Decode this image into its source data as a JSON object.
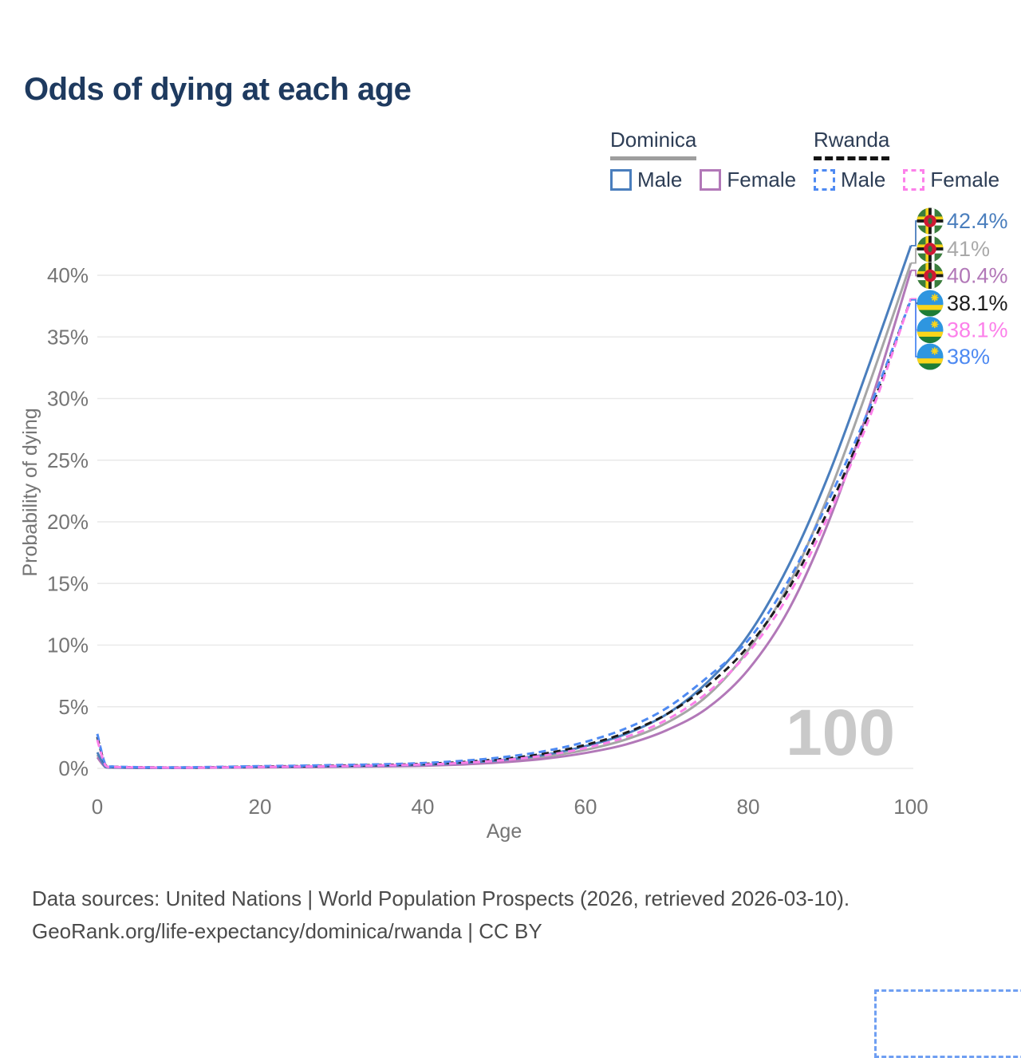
{
  "title": "Odds of dying at each age",
  "legend": {
    "groups": [
      {
        "name": "Dominica",
        "line_style": "solid",
        "underline_color": "#9e9e9e",
        "items": [
          {
            "label": "Male",
            "color": "#4a7ebd"
          },
          {
            "label": "Female",
            "color": "#b278b8"
          }
        ]
      },
      {
        "name": "Rwanda",
        "line_style": "dashed",
        "underline_color": "#141414",
        "items": [
          {
            "label": "Male",
            "color": "#4e8af2"
          },
          {
            "label": "Female",
            "color": "#fc80ea"
          }
        ]
      }
    ]
  },
  "watermark": "100",
  "footer": {
    "line1": "Data sources: United Nations | World Population Prospects (2026, retrieved 2026-03-10).",
    "line2": "GeoRank.org/life-expectancy/dominica/rwanda | CC BY"
  },
  "chart_data": {
    "type": "line",
    "title": "Odds of dying at each age",
    "xlabel": "Age",
    "ylabel": "Probability of dying",
    "xlim": [
      0,
      100
    ],
    "ylim": [
      0,
      40
    ],
    "x_ticks": [
      0,
      20,
      40,
      60,
      80,
      100
    ],
    "y_ticks": [
      0,
      5,
      10,
      15,
      20,
      25,
      30,
      35,
      40
    ],
    "y_tick_suffix": "%",
    "grid": true,
    "legend_position": "top-right",
    "x": [
      0,
      1,
      2,
      5,
      10,
      15,
      20,
      25,
      30,
      35,
      40,
      45,
      50,
      55,
      60,
      65,
      70,
      75,
      80,
      85,
      90,
      95,
      100
    ],
    "series": [
      {
        "name": "Dominica Male",
        "country": "Dominica",
        "sex": "Male",
        "color": "#4a7ebd",
        "dash": "solid",
        "flag": "dominica",
        "end_label": "42.4%",
        "label_color": "#4a7ebd",
        "values": [
          1.3,
          0.12,
          0.08,
          0.05,
          0.05,
          0.08,
          0.12,
          0.15,
          0.18,
          0.22,
          0.3,
          0.45,
          0.7,
          1.1,
          1.8,
          2.8,
          4.4,
          7.0,
          10.8,
          16.5,
          24.0,
          33.0,
          42.4
        ]
      },
      {
        "name": "Dominica",
        "country": "Dominica",
        "sex": "Both",
        "color": "#a6a6a6",
        "dash": "solid",
        "flag": "dominica",
        "end_label": "41%",
        "label_color": "#a9a9a9",
        "values": [
          1.1,
          0.1,
          0.07,
          0.05,
          0.04,
          0.07,
          0.1,
          0.13,
          0.16,
          0.19,
          0.26,
          0.39,
          0.6,
          0.95,
          1.5,
          2.35,
          3.7,
          5.9,
          9.6,
          14.9,
          22.4,
          31.4,
          41.0
        ]
      },
      {
        "name": "Dominica Female",
        "country": "Dominica",
        "sex": "Female",
        "color": "#b278b8",
        "dash": "solid",
        "flag": "dominica",
        "end_label": "40.4%",
        "label_color": "#b278b8",
        "values": [
          0.9,
          0.09,
          0.06,
          0.04,
          0.04,
          0.06,
          0.08,
          0.1,
          0.13,
          0.16,
          0.21,
          0.32,
          0.5,
          0.78,
          1.25,
          1.95,
          3.1,
          4.9,
          8.0,
          12.9,
          20.2,
          29.6,
          40.4
        ]
      },
      {
        "name": "Rwanda",
        "country": "Rwanda",
        "sex": "Both",
        "color": "#1c1c1c",
        "dash": "dashed",
        "flag": "rwanda",
        "end_label": "38.1%",
        "label_color": "#1c1c1c",
        "values": [
          2.55,
          0.27,
          0.13,
          0.09,
          0.07,
          0.1,
          0.15,
          0.18,
          0.23,
          0.28,
          0.36,
          0.52,
          0.78,
          1.2,
          1.9,
          2.9,
          4.4,
          6.7,
          9.9,
          14.6,
          21.2,
          29.0,
          38.1
        ]
      },
      {
        "name": "Rwanda Female",
        "country": "Rwanda",
        "sex": "Female",
        "color": "#fc80ea",
        "dash": "dashed",
        "flag": "rwanda",
        "end_label": "38.1%",
        "label_color": "#fc80ea",
        "values": [
          2.3,
          0.24,
          0.12,
          0.08,
          0.06,
          0.08,
          0.12,
          0.15,
          0.19,
          0.24,
          0.31,
          0.45,
          0.67,
          1.05,
          1.65,
          2.55,
          3.95,
          6.15,
          9.4,
          14.1,
          20.7,
          28.6,
          38.1
        ]
      },
      {
        "name": "Rwanda Male",
        "country": "Rwanda",
        "sex": "Male",
        "color": "#4e8af2",
        "dash": "dashed",
        "flag": "rwanda",
        "end_label": "38%",
        "label_color": "#4e8af2",
        "values": [
          2.8,
          0.3,
          0.15,
          0.1,
          0.08,
          0.12,
          0.18,
          0.22,
          0.28,
          0.33,
          0.43,
          0.62,
          0.92,
          1.4,
          2.15,
          3.25,
          4.9,
          7.4,
          10.4,
          15.3,
          21.9,
          29.4,
          38.0
        ]
      }
    ]
  }
}
